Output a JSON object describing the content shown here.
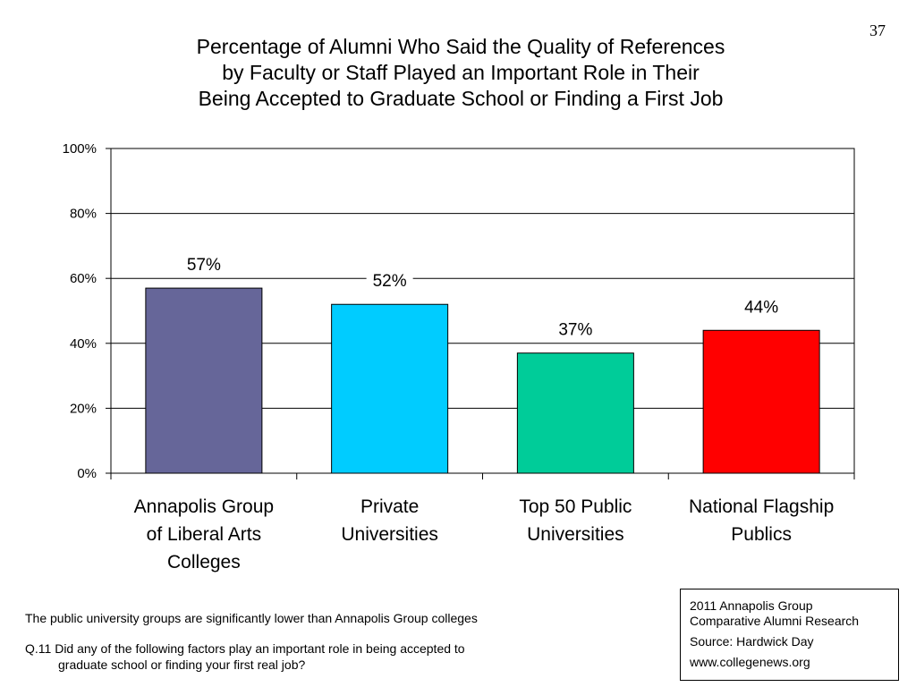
{
  "page_number": "37",
  "title_lines": [
    "Percentage of Alumni Who Said the Quality of References",
    "by Faculty or Staff Played an Important Role in Their",
    "Being Accepted to Graduate School or Finding a First Job"
  ],
  "chart_data": {
    "type": "bar",
    "categories": [
      [
        "Annapolis Group",
        "of Liberal Arts",
        "Colleges"
      ],
      [
        "Private",
        "Universities"
      ],
      [
        "Top 50 Public",
        "Universities"
      ],
      [
        "National Flagship",
        "Publics"
      ]
    ],
    "values": [
      57,
      52,
      37,
      44
    ],
    "data_labels": [
      "57%",
      "52%",
      "37%",
      "44%"
    ],
    "colors": [
      "#666699",
      "#00ccff",
      "#00cc99",
      "#ff0000"
    ],
    "ylim": [
      0,
      100
    ],
    "yticks": [
      0,
      20,
      40,
      60,
      80,
      100
    ],
    "ytick_labels": [
      "0%",
      "20%",
      "40%",
      "60%",
      "80%",
      "100%"
    ],
    "grid": true,
    "legend": "none"
  },
  "footnote": {
    "line1": "The public university groups are significantly lower than Annapolis Group colleges",
    "question_line1": "Q.11 Did any of the following factors play an important role in being accepted to",
    "question_line2": "graduate school or finding your first real job?"
  },
  "source_box": {
    "line1": "2011 Annapolis Group",
    "line2": "Comparative Alumni Research",
    "line3": "Source: Hardwick Day",
    "line4": "www.collegenews.org"
  }
}
